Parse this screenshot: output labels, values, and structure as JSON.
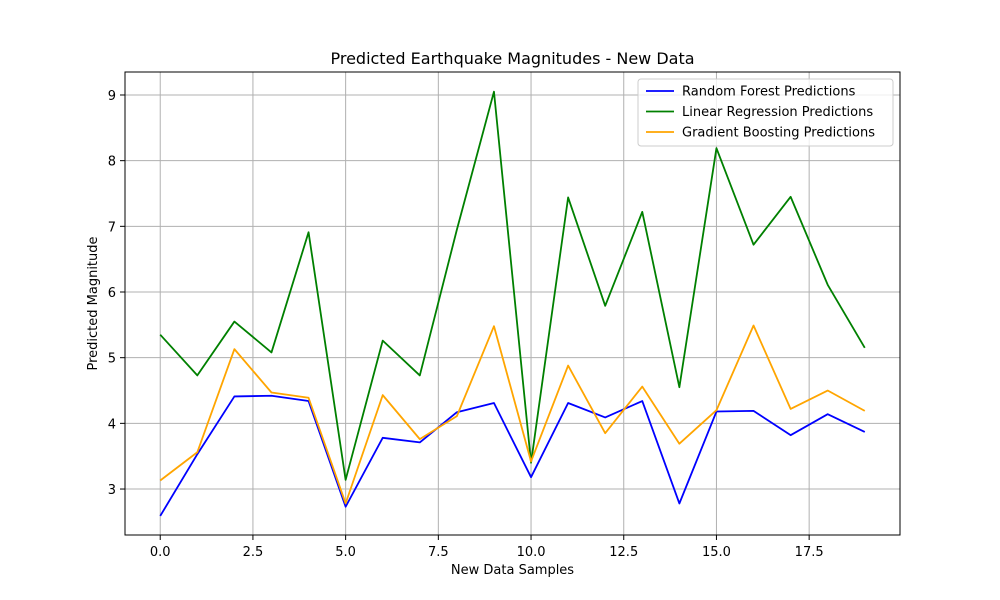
{
  "chart_data": {
    "type": "line",
    "title": "Predicted Earthquake Magnitudes - New Data",
    "xlabel": "New Data Samples",
    "ylabel": "Predicted Magnitude",
    "xlim": [
      -0.95,
      19.95
    ],
    "ylim": [
      2.3,
      9.35
    ],
    "xticks": [
      0.0,
      2.5,
      5.0,
      7.5,
      10.0,
      12.5,
      15.0,
      17.5
    ],
    "xtick_labels": [
      "0.0",
      "2.5",
      "5.0",
      "7.5",
      "10.0",
      "12.5",
      "15.0",
      "17.5"
    ],
    "yticks": [
      3,
      4,
      5,
      6,
      7,
      8,
      9
    ],
    "ytick_labels": [
      "3",
      "4",
      "5",
      "6",
      "7",
      "8",
      "9"
    ],
    "grid": true,
    "legend_position": "top-right",
    "x": [
      0,
      1,
      2,
      3,
      4,
      5,
      6,
      7,
      8,
      9,
      10,
      11,
      12,
      13,
      14,
      15,
      16,
      17,
      18,
      19
    ],
    "series": [
      {
        "name": "Random Forest Predictions",
        "color": "#0000ff",
        "values": [
          2.59,
          3.53,
          4.41,
          4.42,
          4.34,
          2.73,
          3.78,
          3.71,
          4.17,
          4.31,
          3.18,
          4.31,
          4.09,
          4.34,
          2.78,
          4.18,
          4.19,
          3.82,
          4.14,
          3.87
        ]
      },
      {
        "name": "Linear Regression Predictions",
        "color": "#008000",
        "values": [
          5.35,
          4.73,
          5.55,
          5.08,
          6.91,
          3.14,
          5.26,
          4.73,
          6.95,
          9.05,
          3.4,
          7.44,
          5.79,
          7.22,
          4.55,
          8.19,
          6.72,
          7.45,
          6.11,
          5.15
        ]
      },
      {
        "name": "Gradient Boosting Predictions",
        "color": "#ffa500",
        "values": [
          3.13,
          3.56,
          5.13,
          4.47,
          4.39,
          2.78,
          4.43,
          3.76,
          4.11,
          5.48,
          3.42,
          4.88,
          3.85,
          4.56,
          3.69,
          4.2,
          5.49,
          4.22,
          4.5,
          4.19
        ]
      }
    ]
  }
}
